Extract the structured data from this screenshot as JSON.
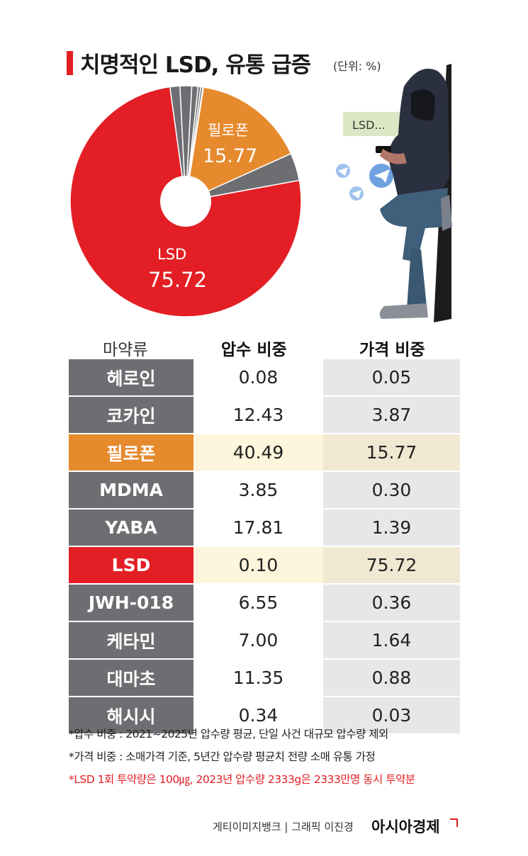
{
  "title": "치명적인 LSD, 유통 급증",
  "unit": "(단위: %)",
  "pie_labels": {
    "philopon_name": "필로폰",
    "philopon_value": "15.77",
    "lsd_name": "LSD",
    "lsd_value": "75.72"
  },
  "illustration": {
    "bubble_text": "LSD..."
  },
  "table": {
    "headers": [
      "마약류",
      "압수 비중",
      "가격 비중"
    ],
    "rows": [
      {
        "name": "헤로인",
        "seizure": "0.08",
        "price": "0.05"
      },
      {
        "name": "코카인",
        "seizure": "12.43",
        "price": "3.87"
      },
      {
        "name": "필로폰",
        "seizure": "40.49",
        "price": "15.77"
      },
      {
        "name": "MDMA",
        "seizure": "3.85",
        "price": "0.30"
      },
      {
        "name": "YABA",
        "seizure": "17.81",
        "price": "1.39"
      },
      {
        "name": "LSD",
        "seizure": "0.10",
        "price": "75.72"
      },
      {
        "name": "JWH-018",
        "seizure": "6.55",
        "price": "0.36"
      },
      {
        "name": "케타민",
        "seizure": "7.00",
        "price": "1.64"
      },
      {
        "name": "대마초",
        "seizure": "11.35",
        "price": "0.88"
      },
      {
        "name": "해시시",
        "seizure": "0.34",
        "price": "0.03"
      }
    ]
  },
  "notes": [
    "*압수 비중 : 2021~2025년 압수량 평균, 단일 사건 대규모 압수량 제외",
    "*가격 비중 : 소매가격 기준, 5년간 압수량 평균치 전량 소매 유통 가정",
    "*LSD 1회 투약량은 100㎍, 2023년 압수량 2333g은 2333만명 동시 투약분"
  ],
  "credit": "게티이미지뱅크  |   그래픽 이진경",
  "brand": "아시아경제",
  "colors": {
    "lsd": "#e31e24",
    "philopon": "#e68a2e",
    "others": "#6d6e71",
    "accent": "#e31e24"
  },
  "chart_data": {
    "type": "pie",
    "title": "치명적인 LSD, 유통 급증",
    "unit": "%",
    "categories": [
      "LSD",
      "필로폰",
      "코카인",
      "YABA",
      "케타민",
      "대마초",
      "JWH-018",
      "MDMA",
      "헤로인",
      "해시시"
    ],
    "values": [
      75.72,
      15.77,
      3.87,
      1.39,
      1.64,
      0.88,
      0.36,
      0.3,
      0.05,
      0.03
    ],
    "labeled_slices": [
      "LSD",
      "필로폰"
    ],
    "table_series": [
      {
        "name": "압수 비중",
        "values": [
          0.08,
          12.43,
          40.49,
          3.85,
          17.81,
          0.1,
          6.55,
          7.0,
          11.35,
          0.34
        ]
      },
      {
        "name": "가격 비중",
        "values": [
          0.05,
          3.87,
          15.77,
          0.3,
          1.39,
          75.72,
          0.36,
          1.64,
          0.88,
          0.03
        ]
      }
    ],
    "table_categories": [
      "헤로인",
      "코카인",
      "필로폰",
      "MDMA",
      "YABA",
      "LSD",
      "JWH-018",
      "케타민",
      "대마초",
      "해시시"
    ]
  }
}
